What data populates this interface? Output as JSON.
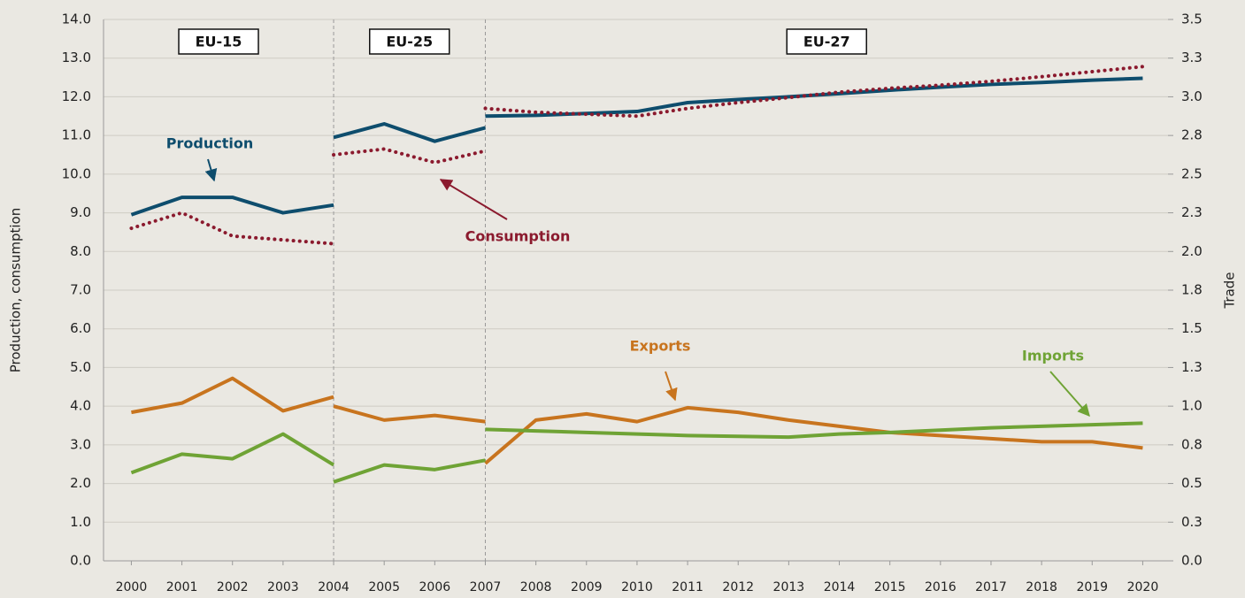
{
  "chart_data": {
    "type": "line",
    "ylabel": "Production, consumption",
    "y2label": "Trade",
    "xlim": [
      1999.45,
      2020.5
    ],
    "xticks": [
      2000,
      2001,
      2002,
      2003,
      2004,
      2005,
      2006,
      2007,
      2008,
      2009,
      2010,
      2011,
      2012,
      2013,
      2014,
      2015,
      2016,
      2017,
      2018,
      2019,
      2020
    ],
    "ylim": [
      0,
      14
    ],
    "yticks": [
      {
        "value": 0,
        "label": "0.0"
      },
      {
        "value": 1,
        "label": "1.0"
      },
      {
        "value": 2,
        "label": "2.0"
      },
      {
        "value": 3,
        "label": "3.0"
      },
      {
        "value": 4,
        "label": "4.0"
      },
      {
        "value": 5,
        "label": "5.0"
      },
      {
        "value": 6,
        "label": "6.0"
      },
      {
        "value": 7,
        "label": "7.0"
      },
      {
        "value": 8,
        "label": "8.0"
      },
      {
        "value": 9,
        "label": "9.0"
      },
      {
        "value": 10,
        "label": "10.0"
      },
      {
        "value": 11,
        "label": "11.0"
      },
      {
        "value": 12,
        "label": "12.0"
      },
      {
        "value": 13,
        "label": "13.0"
      },
      {
        "value": 14,
        "label": "14.0"
      }
    ],
    "y2lim": [
      0,
      3.5
    ],
    "y2ticks": [
      {
        "value": 0,
        "label": "0.0"
      },
      {
        "value": 0.25,
        "label": "0.3"
      },
      {
        "value": 0.5,
        "label": "0.5"
      },
      {
        "value": 0.75,
        "label": "0.8"
      },
      {
        "value": 1,
        "label": "1.0"
      },
      {
        "value": 1.25,
        "label": "1.3"
      },
      {
        "value": 1.5,
        "label": "1.5"
      },
      {
        "value": 1.75,
        "label": "1.8"
      },
      {
        "value": 2,
        "label": "2.0"
      },
      {
        "value": 2.25,
        "label": "2.3"
      },
      {
        "value": 2.5,
        "label": "2.5"
      },
      {
        "value": 2.75,
        "label": "2.8"
      },
      {
        "value": 3,
        "label": "3.0"
      },
      {
        "value": 3.25,
        "label": "3.3"
      },
      {
        "value": 3.5,
        "label": "3.5"
      }
    ],
    "grid": true,
    "periods": [
      {
        "label": "EU-15",
        "x": [
          2000,
          2001,
          2002,
          2003,
          2004
        ]
      },
      {
        "label": "EU-25",
        "x": [
          2004,
          2005,
          2006,
          2007
        ]
      },
      {
        "label": "EU-27",
        "x": [
          2007,
          2008,
          2009,
          2010,
          2011,
          2012,
          2013,
          2014,
          2015,
          2016,
          2017,
          2018,
          2019,
          2020
        ]
      }
    ],
    "series": [
      {
        "name": "Production",
        "color": "#0e4d6d",
        "style": "solid",
        "values": [
          [
            8.95,
            9.4,
            9.4,
            9.0,
            9.2
          ],
          [
            10.95,
            11.3,
            10.85,
            11.2
          ],
          [
            11.5,
            11.52,
            11.57,
            11.62,
            11.85,
            11.93,
            12.0,
            12.08,
            12.17,
            12.25,
            12.32,
            12.37,
            12.43,
            12.48
          ]
        ]
      },
      {
        "name": "Consumption",
        "color": "#8b1a2e",
        "style": "dotted",
        "values": [
          [
            8.6,
            9.0,
            8.4,
            8.3,
            8.2
          ],
          [
            10.5,
            10.65,
            10.3,
            10.6
          ],
          [
            11.7,
            11.6,
            11.55,
            11.5,
            11.7,
            11.85,
            11.98,
            12.12,
            12.22,
            12.3,
            12.4,
            12.52,
            12.65,
            12.78
          ]
        ]
      },
      {
        "name": "Exports",
        "color": "#c8741e",
        "style": "solid",
        "axis": "y2",
        "values": [
          [
            0.96,
            1.02,
            1.18,
            0.97,
            1.06
          ],
          [
            1.0,
            0.91,
            0.94,
            0.9
          ],
          [
            0.63,
            0.91,
            0.95,
            0.9,
            0.99,
            0.96,
            0.91,
            0.87,
            0.83,
            0.81,
            0.79,
            0.77,
            0.77,
            0.73
          ]
        ]
      },
      {
        "name": "Imports",
        "color": "#6fa335",
        "style": "solid",
        "axis": "y2",
        "values": [
          [
            0.57,
            0.69,
            0.66,
            0.82,
            0.62
          ],
          [
            0.51,
            0.62,
            0.59,
            0.65
          ],
          [
            0.85,
            0.84,
            0.83,
            0.82,
            0.81,
            0.805,
            0.8,
            0.82,
            0.83,
            0.845,
            0.86,
            0.87,
            0.88,
            0.89
          ]
        ]
      }
    ]
  }
}
